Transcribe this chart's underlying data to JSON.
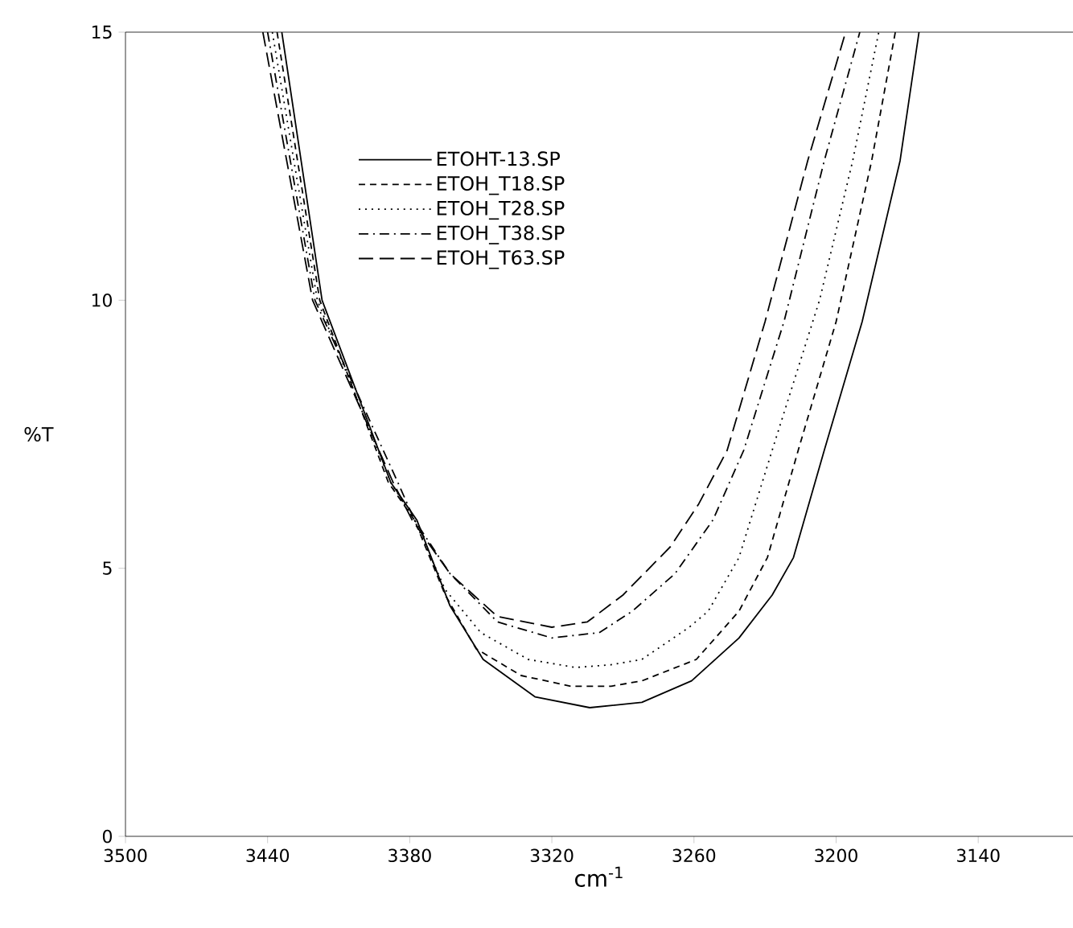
{
  "chart_data": {
    "type": "line",
    "xlabel": "cm$^{-1}$",
    "ylabel": "%T",
    "xlim": [
      3500,
      3100
    ],
    "ylim": [
      0,
      15
    ],
    "xticks": [
      3500,
      3440,
      3380,
      3320,
      3260,
      3200,
      3140
    ],
    "yticks": [
      0,
      5,
      10,
      15
    ],
    "legend": "top",
    "grid": false,
    "series": [
      {
        "name": "ETOHT-13.SP",
        "color": "#000000",
        "line_style": "solid",
        "x": [
          3434,
          3417,
          3388,
          3377,
          3363,
          3349,
          3327,
          3304,
          3282,
          3261,
          3241,
          3227,
          3218,
          3205,
          3189,
          3173,
          3165
        ],
        "values": [
          15,
          10,
          6.6,
          5.9,
          4.3,
          3.3,
          2.6,
          2.4,
          2.5,
          2.9,
          3.7,
          4.5,
          5.2,
          7.2,
          9.6,
          12.6,
          15
        ]
      },
      {
        "name": "ETOH_T18.SP",
        "color": "#000000",
        "line_style": "dashed",
        "x": [
          3436,
          3418,
          3389,
          3378,
          3365,
          3352,
          3333,
          3312,
          3295,
          3282,
          3259,
          3241,
          3229,
          3216,
          3200,
          3185,
          3175
        ],
        "values": [
          15,
          10,
          6.6,
          5.9,
          4.5,
          3.5,
          3.0,
          2.8,
          2.8,
          2.9,
          3.3,
          4.2,
          5.2,
          7.2,
          9.6,
          12.6,
          15
        ]
      },
      {
        "name": "ETOH_T28.SP",
        "color": "#000000",
        "line_style": "dotted",
        "x": [
          3438,
          3419,
          3388,
          3378,
          3365,
          3350,
          3330,
          3310,
          3295,
          3282,
          3262,
          3254,
          3241,
          3227,
          3207,
          3193,
          3182
        ],
        "values": [
          15,
          10,
          6.6,
          5.9,
          4.6,
          3.8,
          3.3,
          3.15,
          3.2,
          3.3,
          3.9,
          4.2,
          5.2,
          7.2,
          10,
          12.6,
          15
        ]
      },
      {
        "name": "ETOH_T38.SP",
        "color": "#000000",
        "line_style": "dashdot",
        "x": [
          3440,
          3420,
          3385,
          3378,
          3363,
          3343,
          3320,
          3300,
          3286,
          3268,
          3252,
          3239,
          3222,
          3205,
          3190
        ],
        "values": [
          15,
          10,
          6.6,
          5.9,
          4.9,
          4.0,
          3.7,
          3.8,
          4.2,
          4.9,
          5.9,
          7.2,
          9.6,
          12.6,
          15
        ]
      },
      {
        "name": "ETOH_T63.SP",
        "color": "#000000",
        "line_style": "longdash",
        "x": [
          3442,
          3421,
          3387,
          3379,
          3363,
          3343,
          3320,
          3305,
          3290,
          3270,
          3258,
          3246,
          3230,
          3212,
          3196
        ],
        "values": [
          15,
          10,
          6.6,
          5.9,
          4.9,
          4.1,
          3.9,
          4.0,
          4.5,
          5.4,
          6.2,
          7.2,
          9.6,
          12.6,
          15
        ]
      }
    ]
  }
}
